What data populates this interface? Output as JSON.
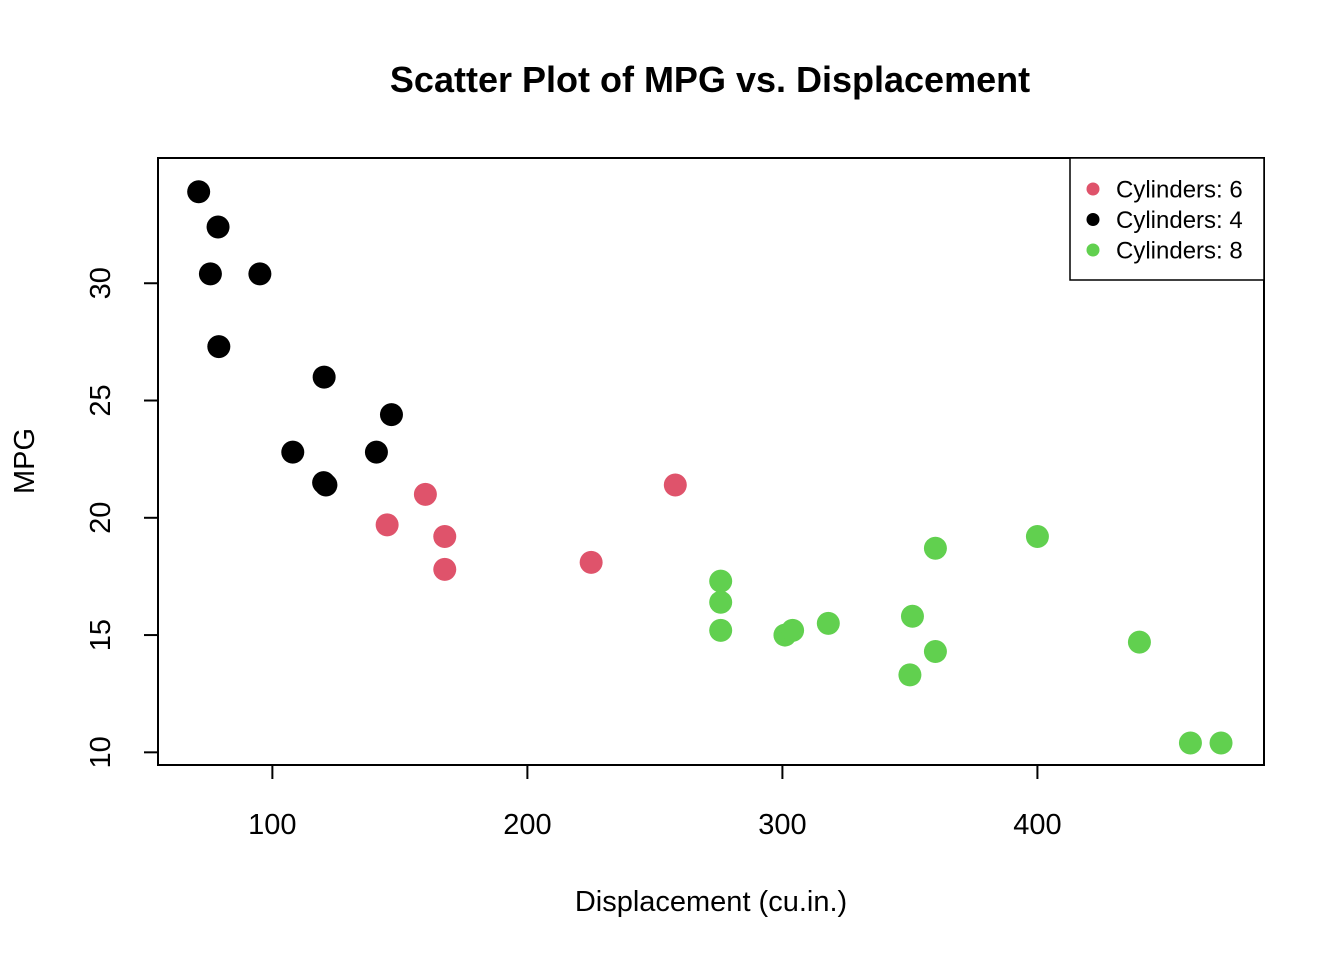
{
  "chart_data": {
    "type": "scatter",
    "title": "Scatter Plot of MPG vs. Displacement",
    "xlabel": "Displacement (cu.in.)",
    "ylabel": "MPG",
    "xlim": [
      55.15,
      488.85
    ],
    "ylim": [
      9.46,
      35.34
    ],
    "x_ticks": [
      100,
      200,
      300,
      400
    ],
    "y_ticks": [
      10,
      15,
      20,
      25,
      30
    ],
    "grid": false,
    "legend_position": "top-right",
    "series": [
      {
        "name": "Cylinders: 6",
        "color": "#DF536B",
        "points": [
          [
            160,
            21.0
          ],
          [
            258,
            21.4
          ],
          [
            225,
            18.1
          ],
          [
            167.6,
            19.2
          ],
          [
            167.6,
            17.8
          ],
          [
            145,
            19.7
          ]
        ]
      },
      {
        "name": "Cylinders: 4",
        "color": "#000000",
        "points": [
          [
            71.1,
            33.9
          ],
          [
            78.7,
            32.4
          ],
          [
            75.7,
            30.4
          ],
          [
            95.1,
            30.4
          ],
          [
            79,
            27.3
          ],
          [
            120.3,
            26.0
          ],
          [
            146.7,
            24.4
          ],
          [
            108,
            22.8
          ],
          [
            140.8,
            22.8
          ],
          [
            120.1,
            21.5
          ],
          [
            121,
            21.4
          ]
        ]
      },
      {
        "name": "Cylinders: 8",
        "color": "#61D04F",
        "points": [
          [
            360,
            18.7
          ],
          [
            400,
            19.2
          ],
          [
            275.8,
            17.3
          ],
          [
            275.8,
            16.4
          ],
          [
            275.8,
            15.2
          ],
          [
            301,
            15.0
          ],
          [
            304,
            15.2
          ],
          [
            318,
            15.5
          ],
          [
            351,
            15.8
          ],
          [
            360,
            14.3
          ],
          [
            350,
            13.3
          ],
          [
            440,
            14.7
          ],
          [
            460,
            10.4
          ],
          [
            472,
            10.4
          ]
        ]
      }
    ],
    "legend_order": [
      "Cylinders: 6",
      "Cylinders: 4",
      "Cylinders: 8"
    ]
  }
}
